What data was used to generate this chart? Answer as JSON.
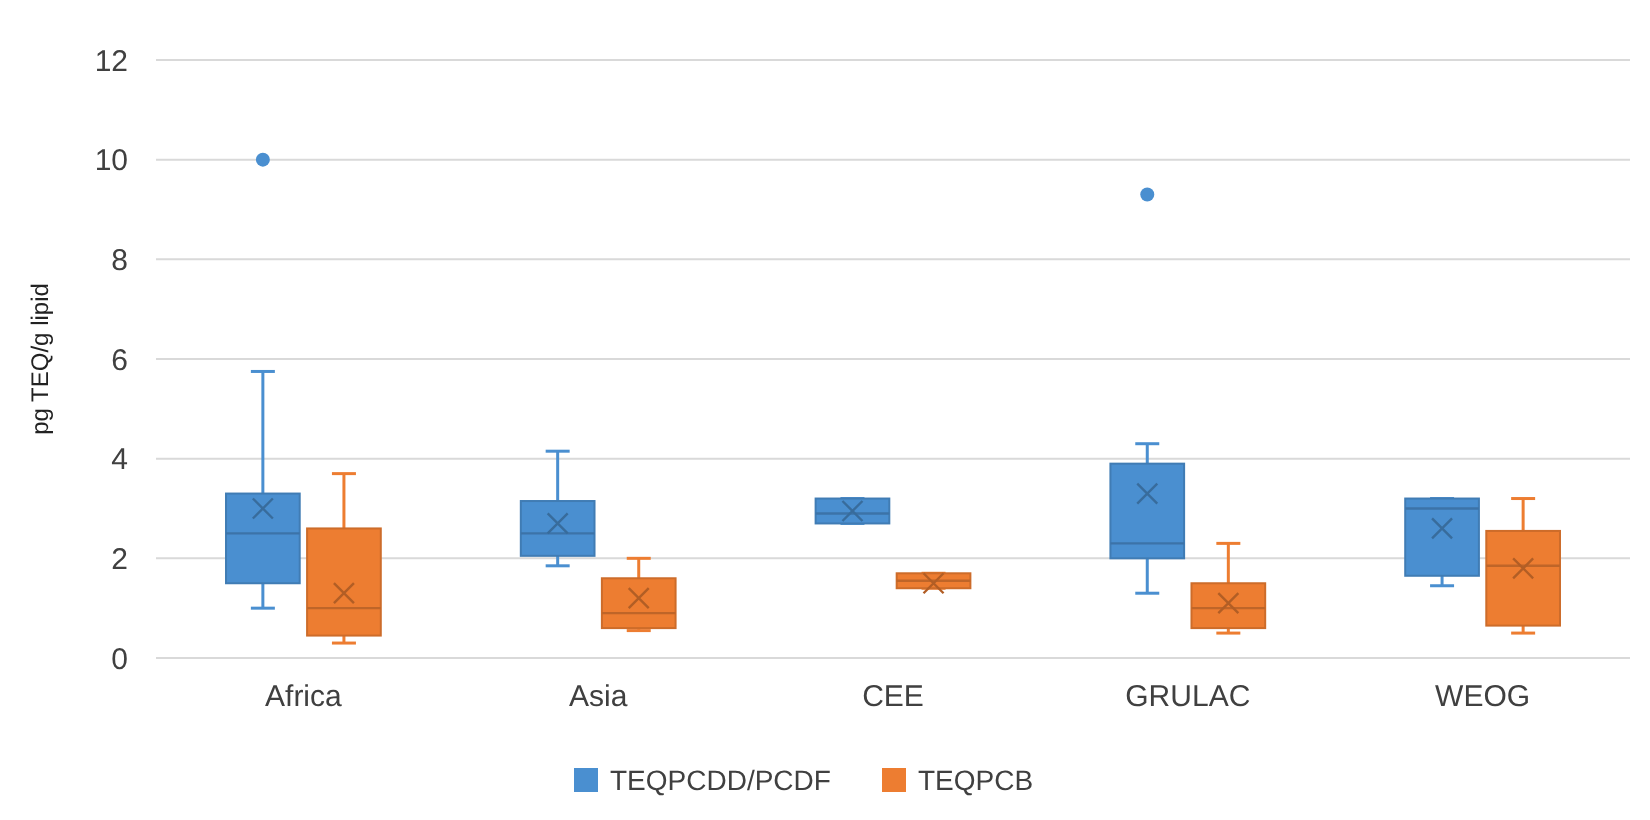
{
  "chart_data": {
    "type": "box",
    "ylabel": "pg TEQ/g lipid",
    "categories": [
      "Africa",
      "Asia",
      "CEE",
      "GRULAC",
      "WEOG"
    ],
    "ylim": [
      0,
      12
    ],
    "yticks": [
      0,
      2,
      4,
      6,
      8,
      10,
      12
    ],
    "grid": "y",
    "legend": "bottom",
    "series": [
      {
        "name": "TEQPCDD/PCDF",
        "color": "#4a8fd0",
        "boxes": [
          {
            "low": 1.0,
            "q1": 1.5,
            "median": 2.5,
            "q3": 3.3,
            "high": 5.75,
            "mean": 3.0,
            "outliers": [
              10
            ]
          },
          {
            "low": 1.85,
            "q1": 2.05,
            "median": 2.5,
            "q3": 3.15,
            "high": 4.15,
            "mean": 2.7
          },
          {
            "low": 2.7,
            "q1": 2.7,
            "median": 2.9,
            "q3": 3.2,
            "high": 3.2,
            "mean": 2.95
          },
          {
            "low": 1.3,
            "q1": 2.0,
            "median": 2.3,
            "q3": 3.9,
            "high": 4.3,
            "mean": 3.3,
            "outliers": [
              9.3
            ]
          },
          {
            "low": 1.45,
            "q1": 1.65,
            "median": 3.0,
            "q3": 3.2,
            "high": 3.2,
            "mean": 2.6
          }
        ]
      },
      {
        "name": "TEQPCB",
        "color": "#ed7d31",
        "boxes": [
          {
            "low": 0.3,
            "q1": 0.45,
            "median": 1.0,
            "q3": 2.6,
            "high": 3.7,
            "mean": 1.3
          },
          {
            "low": 0.55,
            "q1": 0.6,
            "median": 0.9,
            "q3": 1.6,
            "high": 2.0,
            "mean": 1.2
          },
          {
            "low": 1.4,
            "q1": 1.4,
            "median": 1.55,
            "q3": 1.7,
            "high": 1.7,
            "mean": 1.5
          },
          {
            "low": 0.5,
            "q1": 0.6,
            "median": 1.0,
            "q3": 1.5,
            "high": 2.3,
            "mean": 1.1
          },
          {
            "low": 0.5,
            "q1": 0.65,
            "median": 1.85,
            "q3": 2.55,
            "high": 3.2,
            "mean": 1.8
          }
        ]
      }
    ]
  }
}
